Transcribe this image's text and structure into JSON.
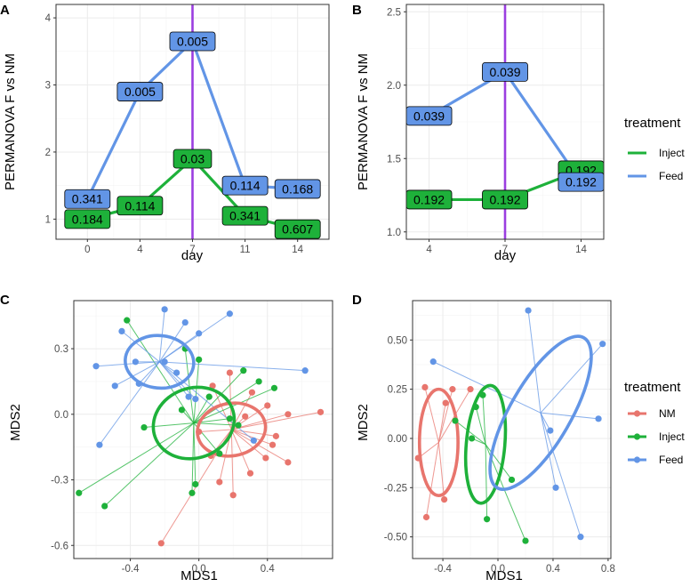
{
  "colors": {
    "NM": "#e8756d",
    "Inject": "#1eb13a",
    "Feed": "#6295e6",
    "vline": "#9b3ee0"
  },
  "chart_data": [
    {
      "panel": "A",
      "type": "line",
      "xlabel": "day",
      "ylabel": "PERMANOVA F vs NM",
      "x_categories": [
        "0",
        "4",
        "7",
        "11",
        "14"
      ],
      "ylim": [
        0.7,
        4.2
      ],
      "yticks": [
        1,
        2,
        3,
        4
      ],
      "vline_at": "7",
      "series": [
        {
          "name": "Inject",
          "x": [
            "0",
            "4",
            "7",
            "11",
            "14"
          ],
          "values": [
            1.0,
            1.2,
            1.9,
            1.05,
            0.85
          ],
          "labels": [
            "0.184",
            "0.114",
            "0.03",
            "0.341",
            "0.607"
          ]
        },
        {
          "name": "Feed",
          "x": [
            "0",
            "4",
            "7",
            "11",
            "14"
          ],
          "values": [
            1.3,
            2.9,
            3.65,
            1.5,
            1.45
          ],
          "labels": [
            "0.341",
            "0.005",
            "0.005",
            "0.114",
            "0.168"
          ]
        }
      ]
    },
    {
      "panel": "B",
      "type": "line",
      "xlabel": "day",
      "ylabel": "PERMANOVA F vs NM",
      "x_categories": [
        "4",
        "7",
        "14"
      ],
      "ylim": [
        0.95,
        2.55
      ],
      "yticks": [
        1.0,
        1.5,
        2.0,
        2.5
      ],
      "vline_at": "7",
      "series": [
        {
          "name": "Inject",
          "x": [
            "4",
            "7",
            "14"
          ],
          "values": [
            1.22,
            1.22,
            1.42
          ],
          "labels": [
            "0.192",
            "0.192",
            "0.192"
          ]
        },
        {
          "name": "Feed",
          "x": [
            "4",
            "7",
            "14"
          ],
          "values": [
            1.79,
            2.09,
            1.34
          ],
          "labels": [
            "0.039",
            "0.039",
            "0.192"
          ]
        }
      ]
    },
    {
      "panel": "C",
      "type": "scatter",
      "xlabel": "MDS1",
      "ylabel": "MDS2",
      "xlim": [
        -0.73,
        0.78
      ],
      "ylim": [
        -0.66,
        0.52
      ],
      "xticks": [
        -0.4,
        0.0,
        0.4
      ],
      "yticks": [
        -0.6,
        -0.3,
        0.0,
        0.3
      ],
      "groups": [
        {
          "name": "NM",
          "centroid": [
            0.19,
            -0.07
          ],
          "ellipse": {
            "cx": 0.19,
            "cy": -0.07,
            "rx": 0.2,
            "ry": 0.12,
            "angle": 10
          },
          "points": [
            [
              0.08,
              0.13
            ],
            [
              0.18,
              0.19
            ],
            [
              0.27,
              -0.01
            ],
            [
              0.31,
              0.1
            ],
            [
              0.4,
              0.04
            ],
            [
              0.52,
              0.0
            ],
            [
              0.71,
              0.01
            ],
            [
              0.45,
              -0.1
            ],
            [
              0.39,
              -0.2
            ],
            [
              0.52,
              -0.22
            ],
            [
              0.3,
              -0.27
            ],
            [
              0.07,
              -0.19
            ],
            [
              0.12,
              -0.31
            ],
            [
              0.2,
              -0.37
            ],
            [
              -0.22,
              -0.59
            ],
            [
              0.43,
              -0.14
            ],
            [
              0.0,
              -0.08
            ]
          ]
        },
        {
          "name": "Inject",
          "centroid": [
            -0.03,
            -0.04
          ],
          "ellipse": {
            "cx": -0.03,
            "cy": -0.04,
            "rx": 0.24,
            "ry": 0.16,
            "angle": 20
          },
          "points": [
            [
              -0.42,
              0.43
            ],
            [
              -0.08,
              0.3
            ],
            [
              0.0,
              0.25
            ],
            [
              0.26,
              0.2
            ],
            [
              0.35,
              0.15
            ],
            [
              0.44,
              0.12
            ],
            [
              0.06,
              0.08
            ],
            [
              -0.1,
              0.02
            ],
            [
              0.18,
              -0.02
            ],
            [
              0.23,
              -0.05
            ],
            [
              -0.32,
              -0.06
            ],
            [
              0.12,
              -0.18
            ],
            [
              -0.02,
              -0.32
            ],
            [
              -0.04,
              -0.36
            ],
            [
              -0.55,
              -0.42
            ],
            [
              -0.7,
              -0.36
            ]
          ]
        },
        {
          "name": "Feed",
          "centroid": [
            -0.23,
            0.24
          ],
          "ellipse": {
            "cx": -0.23,
            "cy": 0.24,
            "rx": 0.2,
            "ry": 0.12,
            "angle": -5
          },
          "points": [
            [
              -0.2,
              0.48
            ],
            [
              -0.08,
              0.42
            ],
            [
              0.18,
              0.46
            ],
            [
              -0.45,
              0.38
            ],
            [
              0.0,
              0.37
            ],
            [
              -0.6,
              0.22
            ],
            [
              -0.37,
              0.24
            ],
            [
              -0.2,
              0.24
            ],
            [
              -0.13,
              0.19
            ],
            [
              -0.35,
              0.14
            ],
            [
              -0.49,
              0.13
            ],
            [
              0.62,
              0.2
            ],
            [
              -0.06,
              0.08
            ],
            [
              -0.58,
              -0.14
            ],
            [
              0.32,
              -0.12
            ],
            [
              -0.02,
              0.07
            ]
          ]
        }
      ]
    },
    {
      "panel": "D",
      "type": "scatter",
      "xlabel": "MDS1",
      "ylabel": "MDS2",
      "xlim": [
        -0.62,
        0.82
      ],
      "ylim": [
        -0.61,
        0.7
      ],
      "xticks": [
        -0.4,
        0.0,
        0.4,
        0.8
      ],
      "yticks": [
        -0.5,
        -0.25,
        0.0,
        0.25,
        0.5
      ],
      "groups": [
        {
          "name": "NM",
          "centroid": [
            -0.43,
            -0.02
          ],
          "ellipse": {
            "cx": -0.43,
            "cy": -0.02,
            "rx": 0.14,
            "ry": 0.27,
            "angle": 0
          },
          "points": [
            [
              -0.53,
              0.26
            ],
            [
              -0.33,
              0.25
            ],
            [
              -0.2,
              0.25
            ],
            [
              -0.38,
              0.18
            ],
            [
              -0.58,
              -0.1
            ],
            [
              -0.52,
              -0.4
            ],
            [
              -0.39,
              -0.31
            ]
          ]
        },
        {
          "name": "Inject",
          "centroid": [
            -0.09,
            -0.03
          ],
          "ellipse": {
            "cx": -0.09,
            "cy": -0.03,
            "rx": 0.14,
            "ry": 0.3,
            "angle": -5
          },
          "points": [
            [
              -0.11,
              0.22
            ],
            [
              -0.16,
              0.16
            ],
            [
              -0.31,
              0.09
            ],
            [
              -0.19,
              0.0
            ],
            [
              0.1,
              -0.21
            ],
            [
              -0.08,
              -0.41
            ],
            [
              0.2,
              -0.52
            ]
          ]
        },
        {
          "name": "Feed",
          "centroid": [
            0.31,
            0.13
          ],
          "ellipse": {
            "cx": 0.31,
            "cy": 0.13,
            "rx": 0.22,
            "ry": 0.44,
            "angle": -30
          },
          "points": [
            [
              -0.47,
              0.39
            ],
            [
              0.22,
              0.65
            ],
            [
              0.76,
              0.48
            ],
            [
              0.73,
              0.1
            ],
            [
              0.38,
              0.04
            ],
            [
              0.6,
              -0.5
            ],
            [
              0.42,
              -0.25
            ]
          ]
        }
      ]
    }
  ],
  "legends": [
    {
      "title": "treatment",
      "items": [
        "Inject",
        "Feed"
      ]
    },
    {
      "title": "treatment",
      "items": [
        "NM",
        "Inject",
        "Feed"
      ]
    }
  ]
}
